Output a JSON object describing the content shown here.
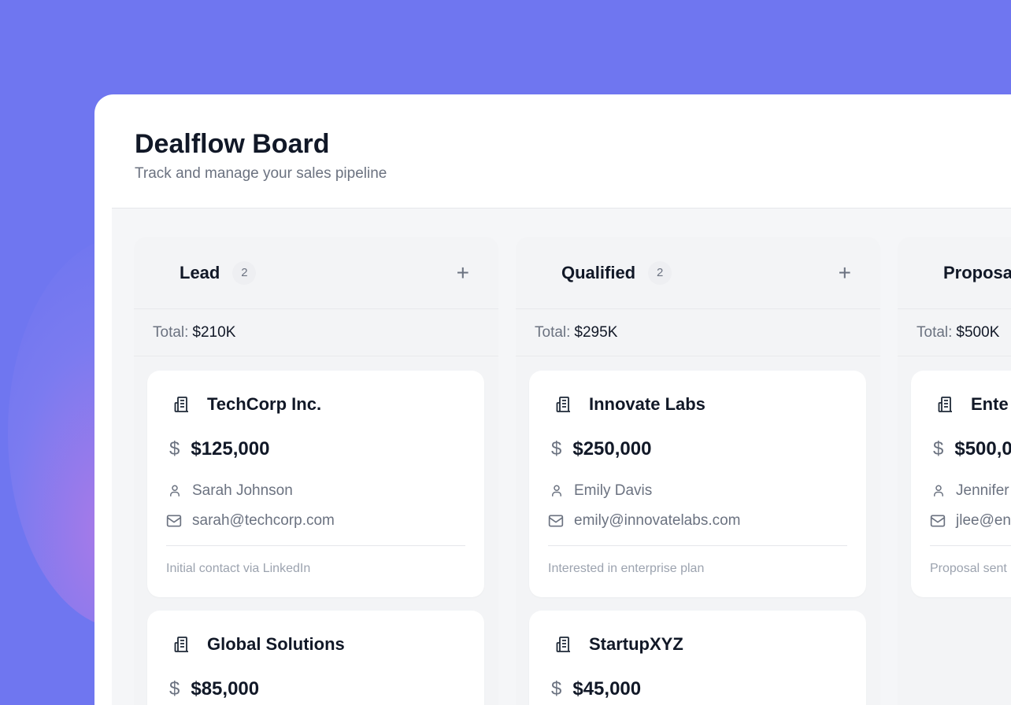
{
  "header": {
    "title": "Dealflow Board",
    "subtitle": "Track and manage your sales pipeline"
  },
  "columns": [
    {
      "name": "Lead",
      "count": "2",
      "total_label": "Total:",
      "total": "$210K",
      "cards": [
        {
          "company": "TechCorp Inc.",
          "value": "$125,000",
          "contact": "Sarah Johnson",
          "email": "sarah@techcorp.com",
          "note": "Initial contact via LinkedIn"
        },
        {
          "company": "Global Solutions",
          "value": "$85,000"
        }
      ]
    },
    {
      "name": "Qualified",
      "count": "2",
      "total_label": "Total:",
      "total": "$295K",
      "cards": [
        {
          "company": "Innovate Labs",
          "value": "$250,000",
          "contact": "Emily Davis",
          "email": "emily@innovatelabs.com",
          "note": "Interested in enterprise plan"
        },
        {
          "company": "StartupXYZ",
          "value": "$45,000"
        }
      ]
    },
    {
      "name": "Proposa",
      "total_label": "Total:",
      "total": "$500K",
      "cards": [
        {
          "company": "Ente",
          "value": "$500,0",
          "contact": "Jennifer",
          "email": "jlee@en",
          "note": "Proposal sent"
        }
      ]
    }
  ],
  "icons": {
    "company": "building-icon",
    "value": "dollar-icon",
    "contact": "user-icon",
    "email": "mail-icon",
    "add": "plus-icon"
  },
  "colors": {
    "background": "#6f76f0",
    "text": "#111827",
    "muted": "#6b7280"
  }
}
